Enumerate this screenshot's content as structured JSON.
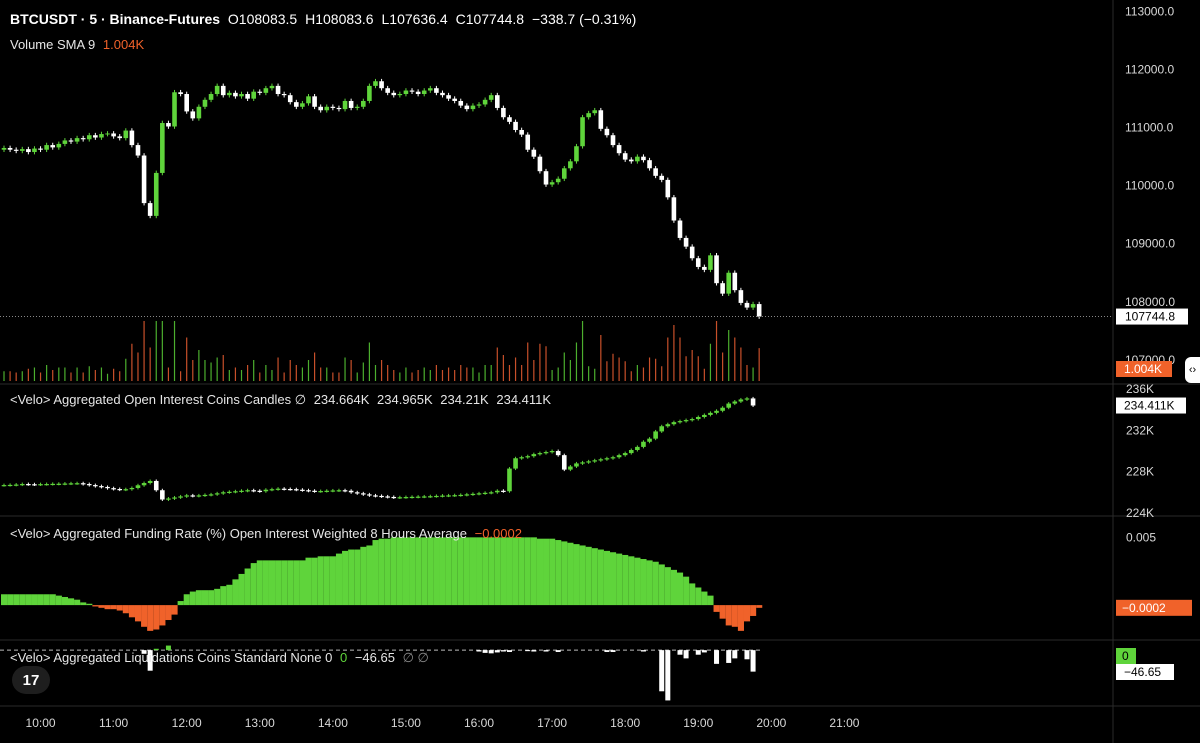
{
  "header": {
    "symbol": "BTCUSDT · 5 · Binance-Futures",
    "open": "O108083.5",
    "high": "H108083.6",
    "low": "L107636.4",
    "close": "C107744.8",
    "change": "−338.7 (−0.31%)"
  },
  "volume_legend": {
    "label": "Volume SMA 9",
    "value": "1.004K"
  },
  "oi_legend": {
    "label": "<Velo> Aggregated Open Interest Coins Candles ∅",
    "o": "234.664K",
    "h": "234.965K",
    "l": "234.21K",
    "c": "234.411K"
  },
  "funding_legend": {
    "label": "<Velo> Aggregated Funding Rate (%) Open Interest Weighted 8 Hours Average",
    "value": "−0.0002"
  },
  "liq_legend": {
    "label": "<Velo> Aggregated Liquidations Coins Standard None 0",
    "v1": "0",
    "v2": "−46.65",
    "extra": "∅  ∅"
  },
  "price_axis": {
    "ticks": [
      "113000.0",
      "112000.0",
      "111000.0",
      "110000.0",
      "109000.0",
      "108000.0",
      "107000.0"
    ],
    "last_price": "107744.8",
    "volume_tag": "1.004K"
  },
  "oi_axis": {
    "ticks": [
      "236K",
      "232K",
      "228K",
      "224K"
    ],
    "last": "234.411K"
  },
  "funding_axis": {
    "ticks": [
      "0.005"
    ],
    "last": "−0.0002"
  },
  "liq_axis": {
    "tag_zero": "0",
    "tag_value": "−46.65"
  },
  "time_axis": [
    "10:00",
    "11:00",
    "12:00",
    "13:00",
    "14:00",
    "15:00",
    "16:00",
    "17:00",
    "18:00",
    "19:00",
    "20:00",
    "21:00"
  ],
  "colors": {
    "up": "#5fd43b",
    "down": "#ffffff",
    "vol_up": "#4caf2e",
    "vol_down": "#c8502a",
    "neg": "#f0622a",
    "bg": "#000000"
  },
  "chart_data": [
    {
      "type": "candlestick",
      "title": "BTCUSDT · 5 · Binance-Futures",
      "interval_minutes": 5,
      "x_start": "09:30",
      "ylim": [
        106600,
        113200
      ],
      "close": [
        110650,
        110620,
        110600,
        110630,
        110580,
        110640,
        110620,
        110700,
        110660,
        110720,
        110780,
        110760,
        110820,
        110800,
        110870,
        110830,
        110890,
        110900,
        110850,
        110820,
        110950,
        110700,
        110520,
        109700,
        109480,
        110220,
        111080,
        111020,
        111610,
        111580,
        111280,
        111160,
        111360,
        111480,
        111580,
        111720,
        111560,
        111600,
        111540,
        111580,
        111500,
        111620,
        111600,
        111680,
        111720,
        111580,
        111560,
        111440,
        111360,
        111420,
        111540,
        111360,
        111300,
        111360,
        111340,
        111320,
        111460,
        111340,
        111360,
        111460,
        111720,
        111800,
        111680,
        111600,
        111560,
        111580,
        111640,
        111620,
        111580,
        111640,
        111680,
        111600,
        111560,
        111500,
        111460,
        111380,
        111320,
        111380,
        111400,
        111480,
        111560,
        111340,
        111180,
        111100,
        110960,
        110880,
        110620,
        110500,
        110250,
        110020,
        110060,
        110120,
        110300,
        110420,
        110680,
        111180,
        111250,
        111300,
        110980,
        110870,
        110700,
        110560,
        110450,
        110420,
        110500,
        110440,
        110300,
        110170,
        110100,
        109800,
        109400,
        109100,
        108950,
        108750,
        108600,
        108550,
        108800,
        108320,
        108140,
        108500,
        108200,
        107980,
        107900,
        107960,
        107745
      ],
      "volume_dir": "up/down series shown as histogram below price"
    },
    {
      "type": "candlestick",
      "title": "<Velo> Aggregated Open Interest Coins Candles",
      "ylim": [
        223800,
        236400
      ],
      "close": [
        226700,
        226720,
        226750,
        226800,
        226780,
        226760,
        226790,
        226800,
        226820,
        226830,
        226850,
        226870,
        226880,
        226800,
        226700,
        226600,
        226520,
        226400,
        226320,
        226260,
        226300,
        226420,
        226680,
        226900,
        227100,
        226200,
        225300,
        225400,
        225500,
        225600,
        225700,
        225650,
        225700,
        225750,
        225800,
        225900,
        226000,
        226050,
        226100,
        226150,
        226200,
        226150,
        226100,
        226250,
        226300,
        226350,
        226320,
        226300,
        226250,
        226200,
        226150,
        226100,
        226120,
        226150,
        226180,
        226200,
        226150,
        226000,
        225900,
        225800,
        225700,
        225650,
        225600,
        225550,
        225500,
        225520,
        225540,
        225560,
        225580,
        225600,
        225620,
        225650,
        225680,
        225700,
        225720,
        225750,
        225800,
        225850,
        225900,
        225950,
        226000,
        226150,
        226100,
        228300,
        229300,
        229400,
        229500,
        229700,
        229800,
        229900,
        230000,
        229600,
        228200,
        228500,
        228800,
        228900,
        229000,
        229100,
        229200,
        229300,
        229400,
        229600,
        229800,
        230100,
        230400,
        230900,
        231200,
        231900,
        232400,
        232600,
        232800,
        232900,
        233000,
        233100,
        233300,
        233500,
        233700,
        233900,
        234200,
        234600,
        234800,
        235000,
        235100,
        234411
      ]
    },
    {
      "type": "bar",
      "title": "<Velo> Aggregated Funding Rate (%) Open Interest Weighted 8 Hours Average",
      "ylim": [
        -0.0025,
        0.0065
      ],
      "values": [
        0.0008,
        0.0008,
        0.0008,
        0.0008,
        0.0008,
        0.0008,
        0.0008,
        0.0008,
        0.0008,
        0.0007,
        0.0006,
        0.0005,
        0.0004,
        0.0002,
        0.0001,
        -0.0001,
        -0.0002,
        -0.0003,
        -0.0003,
        -0.0004,
        -0.0006,
        -0.0009,
        -0.0012,
        -0.0016,
        -0.0019,
        -0.0018,
        -0.0015,
        -0.0011,
        -0.0007,
        0.0003,
        0.0008,
        0.001,
        0.0011,
        0.0011,
        0.0011,
        0.0012,
        0.0014,
        0.0015,
        0.0019,
        0.0023,
        0.0027,
        0.0031,
        0.0033,
        0.0033,
        0.0033,
        0.0033,
        0.0033,
        0.0033,
        0.0033,
        0.0033,
        0.0035,
        0.0035,
        0.0036,
        0.0036,
        0.0036,
        0.0038,
        0.004,
        0.0041,
        0.0041,
        0.0043,
        0.0044,
        0.0048,
        0.0049,
        0.0049,
        0.005,
        0.005,
        0.005,
        0.005,
        0.005,
        0.005,
        0.005,
        0.005,
        0.005,
        0.005,
        0.005,
        0.005,
        0.005,
        0.005,
        0.005,
        0.005,
        0.005,
        0.005,
        0.005,
        0.005,
        0.005,
        0.005,
        0.005,
        0.005,
        0.0049,
        0.0049,
        0.0049,
        0.0048,
        0.0047,
        0.0046,
        0.0045,
        0.0044,
        0.0043,
        0.0042,
        0.0041,
        0.004,
        0.0039,
        0.0038,
        0.0037,
        0.0036,
        0.0035,
        0.0034,
        0.0033,
        0.0032,
        0.003,
        0.0028,
        0.0026,
        0.0024,
        0.0021,
        0.0016,
        0.0013,
        0.001,
        0.0007,
        -0.0005,
        -0.001,
        -0.0015,
        -0.0016,
        -0.0019,
        -0.0012,
        -0.0008,
        -0.0002
      ]
    },
    {
      "type": "bar",
      "title": "<Velo> Aggregated Liquidations Coins Standard None 0",
      "ylim": [
        -120,
        20
      ],
      "values": [
        0,
        0,
        0,
        0,
        0,
        0,
        0,
        0,
        0,
        0,
        0,
        0,
        0,
        0,
        0,
        0,
        0,
        0,
        0,
        0,
        0,
        0,
        0,
        -8,
        -45,
        3,
        0,
        10,
        0,
        0,
        0,
        0,
        0,
        0,
        0,
        0,
        0,
        0,
        0,
        0,
        0,
        0,
        0,
        0,
        0,
        0,
        0,
        0,
        0,
        0,
        0,
        0,
        0,
        0,
        0,
        0,
        0,
        0,
        0,
        0,
        0,
        0,
        0,
        0,
        0,
        0,
        0,
        0,
        0,
        0,
        0,
        0,
        0,
        0,
        0,
        0,
        0,
        0,
        -3,
        -6,
        -7,
        -5,
        -3,
        -4,
        0,
        0,
        -2,
        -3,
        0,
        -3,
        0,
        -4,
        0,
        0,
        0,
        0,
        0,
        0,
        0,
        -4,
        -4,
        0,
        0,
        0,
        0,
        -3,
        0,
        0,
        -90,
        -110,
        0,
        -10,
        -18,
        0,
        -10,
        -5,
        0,
        -30,
        0,
        -28,
        -18,
        0,
        -20,
        -47
      ]
    }
  ]
}
